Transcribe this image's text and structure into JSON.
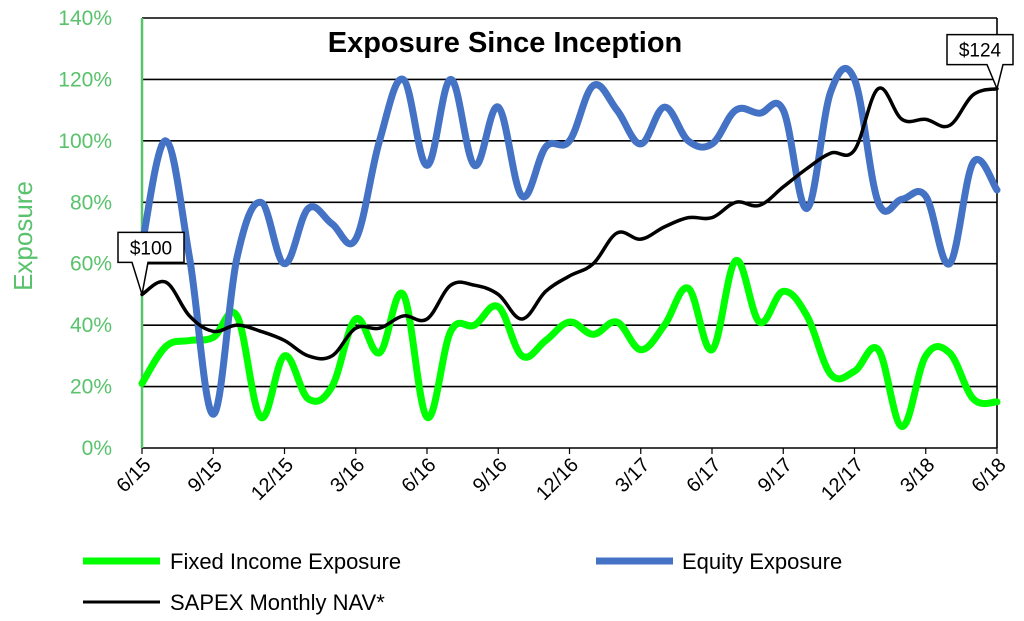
{
  "chart_data": {
    "type": "line",
    "title": "Exposure Since Inception",
    "ylabel": "Exposure",
    "xlabel": "",
    "ylim": [
      0,
      140
    ],
    "y_ticks": [
      "0%",
      "20%",
      "40%",
      "60%",
      "80%",
      "100%",
      "120%",
      "140%"
    ],
    "x_ticks": [
      "6/15",
      "9/15",
      "12/15",
      "3/16",
      "6/16",
      "9/16",
      "12/16",
      "3/17",
      "6/17",
      "9/17",
      "12/17",
      "3/18",
      "6/18"
    ],
    "grid": true,
    "legend_position": "bottom",
    "months": [
      "6/15",
      "7/15",
      "8/15",
      "9/15",
      "10/15",
      "11/15",
      "12/15",
      "1/16",
      "2/16",
      "3/16",
      "4/16",
      "5/16",
      "6/16",
      "7/16",
      "8/16",
      "9/16",
      "10/16",
      "11/16",
      "12/16",
      "1/17",
      "2/17",
      "3/17",
      "4/17",
      "5/17",
      "6/17",
      "7/17",
      "8/17",
      "9/17",
      "10/17",
      "11/17",
      "12/17",
      "1/18",
      "2/18",
      "3/18",
      "4/18",
      "5/18",
      "6/18"
    ],
    "series": [
      {
        "name": "Fixed Income Exposure",
        "color": "#00ff00",
        "values": [
          21,
          33,
          35,
          36,
          43,
          10,
          30,
          16,
          20,
          42,
          31,
          50,
          10,
          38,
          40,
          46,
          30,
          35,
          41,
          37,
          41,
          32,
          40,
          52,
          32,
          61,
          41,
          51,
          43,
          24,
          25,
          32,
          7,
          30,
          31,
          16,
          15
        ]
      },
      {
        "name": "Equity Exposure",
        "color": "#4472c4",
        "values": [
          66,
          100,
          62,
          11,
          62,
          80,
          60,
          78,
          73,
          68,
          100,
          120,
          92,
          120,
          92,
          111,
          82,
          98,
          100,
          118,
          110,
          99,
          111,
          100,
          99,
          110,
          109,
          110,
          78,
          116,
          120,
          80,
          81,
          82,
          60,
          93,
          84
        ]
      },
      {
        "name": "SAPEX Monthly NAV*",
        "color": "#000000",
        "values": [
          50,
          54,
          43,
          38,
          40,
          38,
          35,
          30,
          30,
          39,
          39,
          43,
          42,
          53,
          53,
          50,
          42,
          51,
          56,
          60,
          70,
          68,
          72,
          75,
          75,
          80,
          79,
          85,
          91,
          96,
          97,
          117,
          107,
          107,
          105,
          115,
          117
        ]
      }
    ],
    "annotations": [
      {
        "text": "$100",
        "series": "SAPEX Monthly NAV*",
        "index": 0
      },
      {
        "text": "$124",
        "series": "SAPEX Monthly NAV*",
        "index": 36
      }
    ]
  }
}
